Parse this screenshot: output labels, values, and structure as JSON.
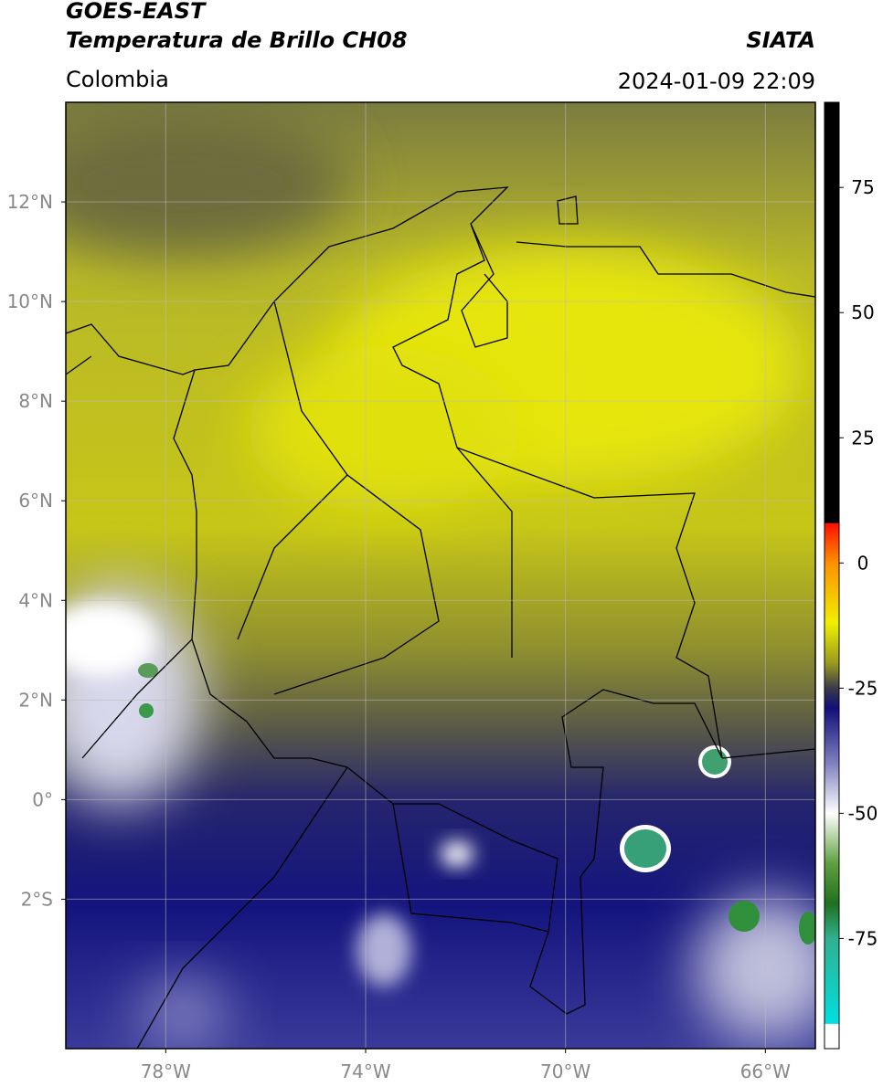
{
  "header": {
    "satellite": "GOES-EAST",
    "product": "Temperatura de Brillo CH08",
    "organization": "SIATA",
    "region": "Colombia",
    "datetime": "2024-01-09 22:09"
  },
  "map": {
    "lon_range": [
      -80,
      -65
    ],
    "lat_range": [
      -5,
      14
    ],
    "lon_ticks": [
      {
        "value": -78,
        "label": "78°W"
      },
      {
        "value": -74,
        "label": "74°W"
      },
      {
        "value": -70,
        "label": "70°W"
      },
      {
        "value": -66,
        "label": "66°W"
      }
    ],
    "lat_ticks": [
      {
        "value": 12,
        "label": "12°N"
      },
      {
        "value": 10,
        "label": "10°N"
      },
      {
        "value": 8,
        "label": "8°N"
      },
      {
        "value": 6,
        "label": "6°N"
      },
      {
        "value": 4,
        "label": "4°N"
      },
      {
        "value": 2,
        "label": "2°N"
      },
      {
        "value": 0,
        "label": "0°"
      },
      {
        "value": -2,
        "label": "2°S"
      }
    ]
  },
  "colorbar": {
    "clim": [
      -97,
      92
    ],
    "ticks": [
      75,
      50,
      25,
      0,
      -25,
      -50,
      -75
    ],
    "colormap": [
      {
        "value": 92,
        "color": "#000000"
      },
      {
        "value": 8,
        "color": "#000000"
      },
      {
        "value": 7.9,
        "color": "#ff1000"
      },
      {
        "value": 0,
        "color": "#ff9000"
      },
      {
        "value": -12,
        "color": "#f0f000"
      },
      {
        "value": -20,
        "color": "#9a9a20"
      },
      {
        "value": -25,
        "color": "#3a3a4a"
      },
      {
        "value": -29,
        "color": "#10107a"
      },
      {
        "value": -40,
        "color": "#8080c0"
      },
      {
        "value": -50,
        "color": "#ffffff"
      },
      {
        "value": -60,
        "color": "#60a040"
      },
      {
        "value": -68,
        "color": "#207020"
      },
      {
        "value": -75,
        "color": "#30b090"
      },
      {
        "value": -92,
        "color": "#00e0e0"
      },
      {
        "value": -92.1,
        "color": "#ffffff"
      },
      {
        "value": -97,
        "color": "#ffffff"
      }
    ]
  }
}
